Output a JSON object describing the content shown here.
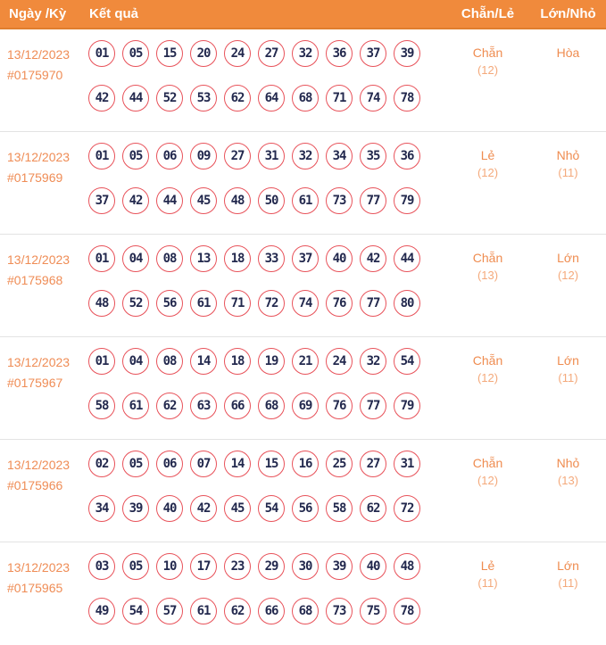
{
  "header": {
    "columns": [
      "Ngày /Kỳ",
      "Kết quả",
      "Chẵn/Lẻ",
      "Lớn/Nhỏ"
    ]
  },
  "colors": {
    "header_bg": "#f08a3c",
    "header_border": "#e07e2e",
    "date_text": "#ef8c55",
    "ball_border": "#e8525a",
    "ball_text": "#23294e",
    "value_text": "#ef8c50",
    "count_text": "#f4a97b",
    "divider": "#e3e3e3"
  },
  "rows": [
    {
      "date": "13/12/2023",
      "period": "#0175970",
      "numbers_line1": [
        "01",
        "05",
        "15",
        "20",
        "24",
        "27",
        "32",
        "36",
        "37",
        "39"
      ],
      "numbers_line2": [
        "42",
        "44",
        "52",
        "53",
        "62",
        "64",
        "68",
        "71",
        "74",
        "78"
      ],
      "parity": "Chẵn",
      "parity_count": "(12)",
      "size": "Hòa",
      "size_count": ""
    },
    {
      "date": "13/12/2023",
      "period": "#0175969",
      "numbers_line1": [
        "01",
        "05",
        "06",
        "09",
        "27",
        "31",
        "32",
        "34",
        "35",
        "36"
      ],
      "numbers_line2": [
        "37",
        "42",
        "44",
        "45",
        "48",
        "50",
        "61",
        "73",
        "77",
        "79"
      ],
      "parity": "Lẻ",
      "parity_count": "(12)",
      "size": "Nhỏ",
      "size_count": "(11)"
    },
    {
      "date": "13/12/2023",
      "period": "#0175968",
      "numbers_line1": [
        "01",
        "04",
        "08",
        "13",
        "18",
        "33",
        "37",
        "40",
        "42",
        "44"
      ],
      "numbers_line2": [
        "48",
        "52",
        "56",
        "61",
        "71",
        "72",
        "74",
        "76",
        "77",
        "80"
      ],
      "parity": "Chẵn",
      "parity_count": "(13)",
      "size": "Lớn",
      "size_count": "(12)"
    },
    {
      "date": "13/12/2023",
      "period": "#0175967",
      "numbers_line1": [
        "01",
        "04",
        "08",
        "14",
        "18",
        "19",
        "21",
        "24",
        "32",
        "54"
      ],
      "numbers_line2": [
        "58",
        "61",
        "62",
        "63",
        "66",
        "68",
        "69",
        "76",
        "77",
        "79"
      ],
      "parity": "Chẵn",
      "parity_count": "(12)",
      "size": "Lớn",
      "size_count": "(11)"
    },
    {
      "date": "13/12/2023",
      "period": "#0175966",
      "numbers_line1": [
        "02",
        "05",
        "06",
        "07",
        "14",
        "15",
        "16",
        "25",
        "27",
        "31"
      ],
      "numbers_line2": [
        "34",
        "39",
        "40",
        "42",
        "45",
        "54",
        "56",
        "58",
        "62",
        "72"
      ],
      "parity": "Chẵn",
      "parity_count": "(12)",
      "size": "Nhỏ",
      "size_count": "(13)"
    },
    {
      "date": "13/12/2023",
      "period": "#0175965",
      "numbers_line1": [
        "03",
        "05",
        "10",
        "17",
        "23",
        "29",
        "30",
        "39",
        "40",
        "48"
      ],
      "numbers_line2": [
        "49",
        "54",
        "57",
        "61",
        "62",
        "66",
        "68",
        "73",
        "75",
        "78"
      ],
      "parity": "Lẻ",
      "parity_count": "(11)",
      "size": "Lớn",
      "size_count": "(11)"
    }
  ]
}
